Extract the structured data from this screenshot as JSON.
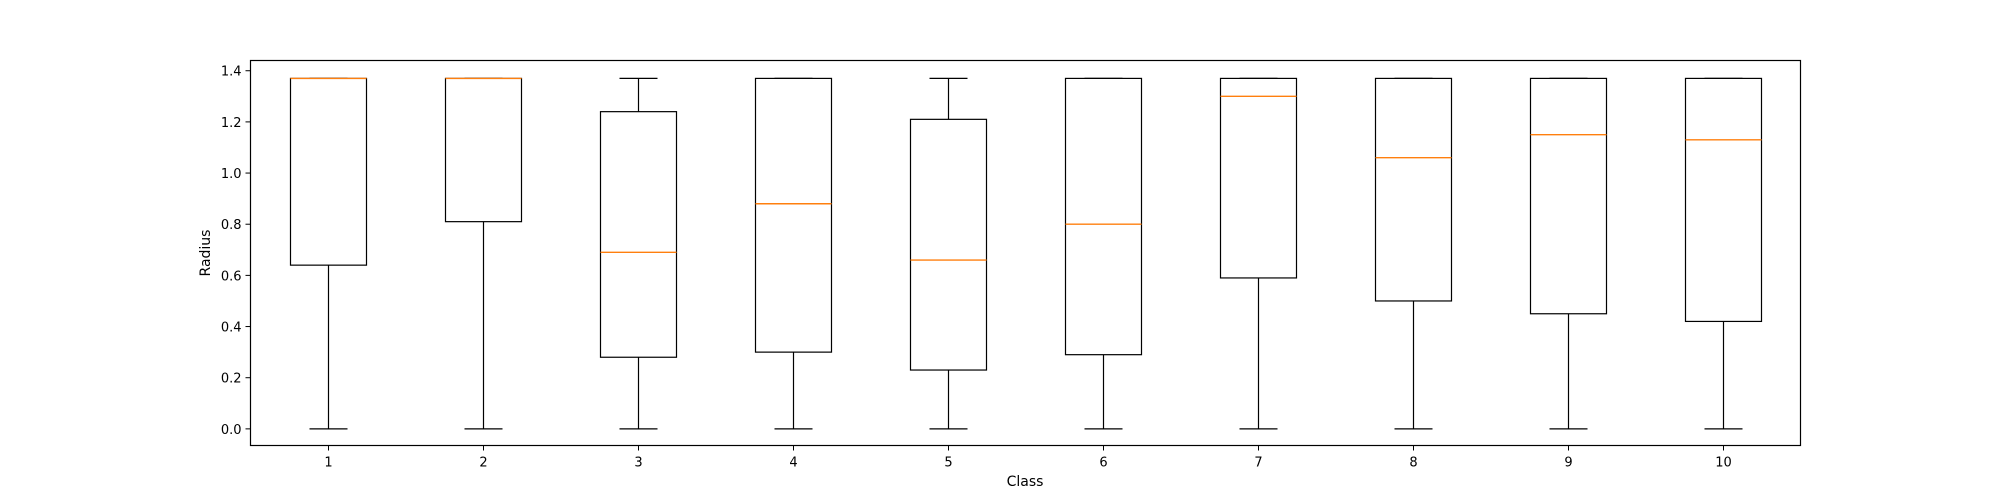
{
  "chart_data": {
    "type": "box",
    "title": "",
    "xlabel": "Class",
    "ylabel": "Radius",
    "ylim": [
      -0.065,
      1.44
    ],
    "y_ticks": [
      0.0,
      0.2,
      0.4,
      0.6,
      0.8,
      1.0,
      1.2,
      1.4
    ],
    "y_tick_labels": [
      "0.0",
      "0.2",
      "0.4",
      "0.6",
      "0.8",
      "1.0",
      "1.2",
      "1.4"
    ],
    "categories": [
      "1",
      "2",
      "3",
      "4",
      "5",
      "6",
      "7",
      "8",
      "9",
      "10"
    ],
    "boxes": [
      {
        "label": "1",
        "whislo": 0.0,
        "q1": 0.64,
        "med": 1.37,
        "q3": 1.37,
        "whishi": 1.37
      },
      {
        "label": "2",
        "whislo": 0.0,
        "q1": 0.81,
        "med": 1.37,
        "q3": 1.37,
        "whishi": 1.37
      },
      {
        "label": "3",
        "whislo": 0.0,
        "q1": 0.28,
        "med": 0.69,
        "q3": 1.24,
        "whishi": 1.37
      },
      {
        "label": "4",
        "whislo": 0.0,
        "q1": 0.3,
        "med": 0.88,
        "q3": 1.37,
        "whishi": 1.37
      },
      {
        "label": "5",
        "whislo": 0.0,
        "q1": 0.23,
        "med": 0.66,
        "q3": 1.21,
        "whishi": 1.37
      },
      {
        "label": "6",
        "whislo": 0.0,
        "q1": 0.29,
        "med": 0.8,
        "q3": 1.37,
        "whishi": 1.37
      },
      {
        "label": "7",
        "whislo": 0.0,
        "q1": 0.59,
        "med": 1.3,
        "q3": 1.37,
        "whishi": 1.37
      },
      {
        "label": "8",
        "whislo": 0.0,
        "q1": 0.5,
        "med": 1.06,
        "q3": 1.37,
        "whishi": 1.37
      },
      {
        "label": "9",
        "whislo": 0.0,
        "q1": 0.45,
        "med": 1.15,
        "q3": 1.37,
        "whishi": 1.37
      },
      {
        "label": "10",
        "whislo": 0.0,
        "q1": 0.42,
        "med": 1.13,
        "q3": 1.37,
        "whishi": 1.37
      }
    ],
    "colors": {
      "box": "#000000",
      "median": "#ff7f0e"
    },
    "grid": false,
    "legend": "none"
  }
}
